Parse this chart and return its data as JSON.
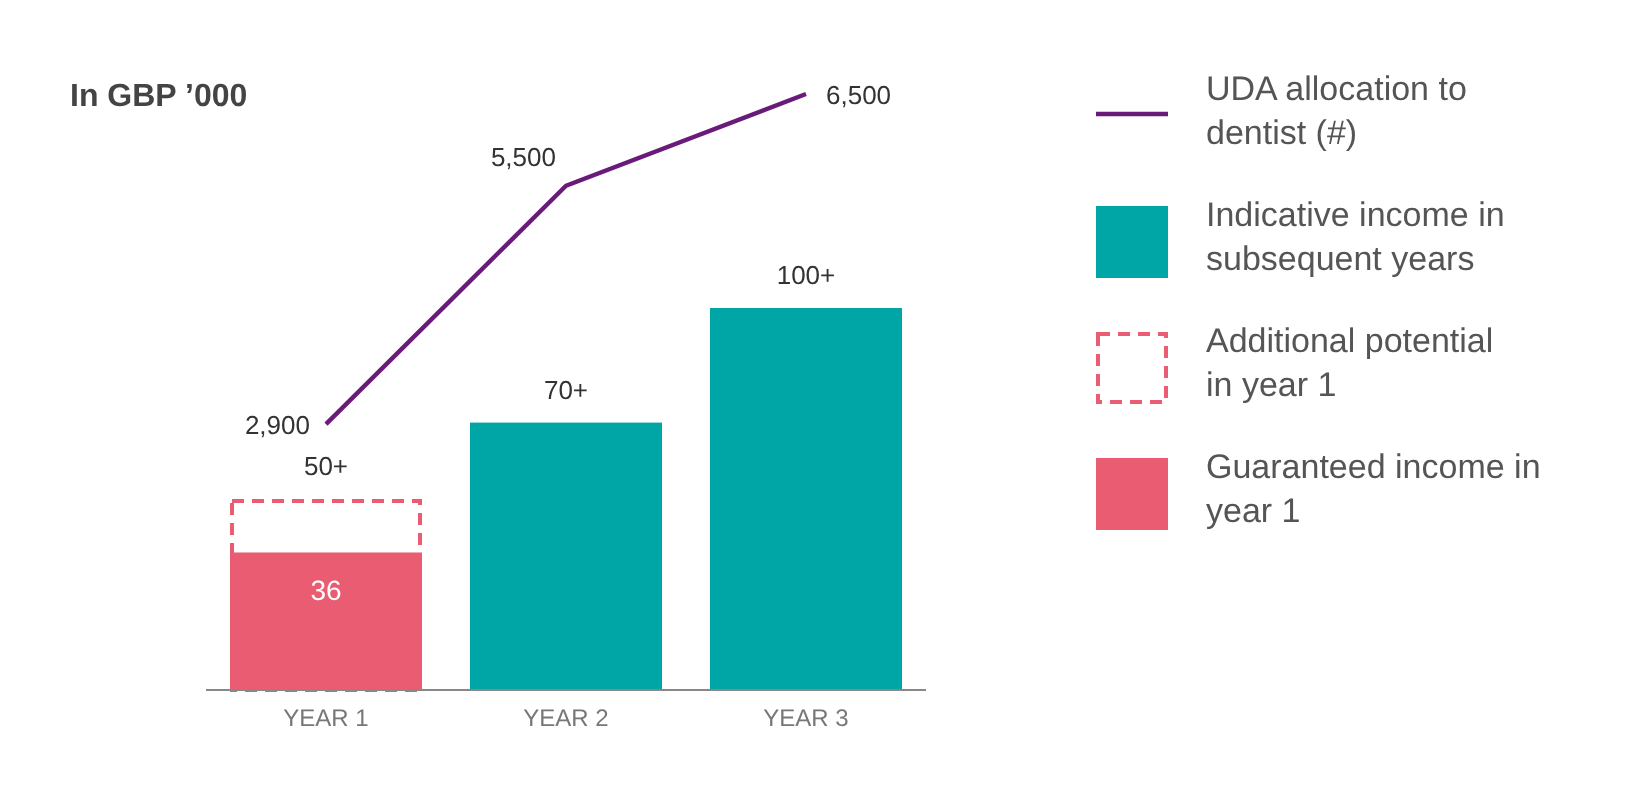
{
  "chart_data": {
    "type": "bar",
    "title": "In GBP ’000",
    "categories": [
      "YEAR 1",
      "YEAR 2",
      "YEAR 3"
    ],
    "tick_labels": "x",
    "legend": "right",
    "series": [
      {
        "name": "Additional potential in year 1",
        "color": "#e95c71",
        "line_style": "dashed",
        "values": [
          50,
          null,
          null
        ],
        "value_labels": [
          "50+",
          null,
          null
        ]
      },
      {
        "name": "Guaranteed income in year 1",
        "color": "#e95c71",
        "values": [
          36,
          null,
          null
        ],
        "value_labels": [
          "36",
          null,
          null
        ]
      },
      {
        "name": "Indicative income in subsequent years",
        "color": "#00a6a6",
        "values": [
          null,
          70,
          100
        ],
        "value_labels": [
          null,
          "70+",
          "100+"
        ]
      },
      {
        "name": "UDA allocation to dentist (#)",
        "type": "line",
        "axis": "y2",
        "color": "#6a1b7a",
        "values": [
          2900,
          5500,
          6500
        ],
        "value_labels": [
          "2,900",
          "5,500",
          "6,500"
        ]
      }
    ]
  }
}
